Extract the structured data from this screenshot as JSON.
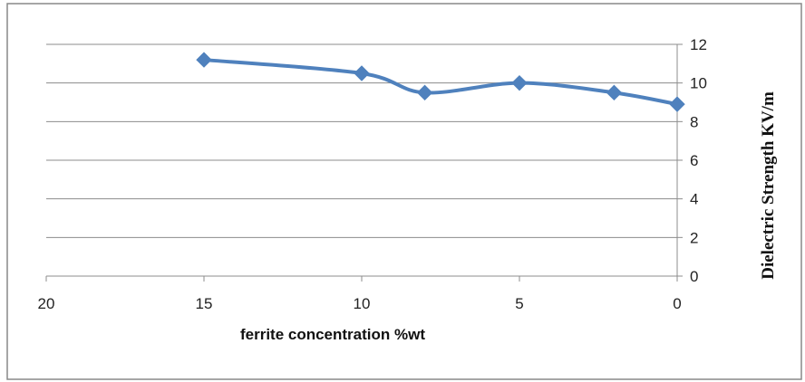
{
  "chart_data": {
    "type": "line",
    "title": "",
    "xlabel": "ferrite concentration %wt",
    "ylabel": "Dielectric Strength KV/m",
    "x_reversed": true,
    "y_axis_side": "right",
    "xlim": [
      0,
      20
    ],
    "ylim": [
      0,
      12
    ],
    "x_ticks": [
      20,
      15,
      10,
      5,
      0
    ],
    "y_ticks": [
      0,
      2,
      4,
      6,
      8,
      10,
      12
    ],
    "grid": "horizontal",
    "legend": "none",
    "series": [
      {
        "x": [
          15,
          10,
          8,
          5,
          2,
          0
        ],
        "y": [
          11.2,
          10.5,
          9.5,
          10.0,
          9.5,
          8.9
        ],
        "color": "#4F81BD",
        "marker": "diamond",
        "smooth": true
      }
    ]
  }
}
